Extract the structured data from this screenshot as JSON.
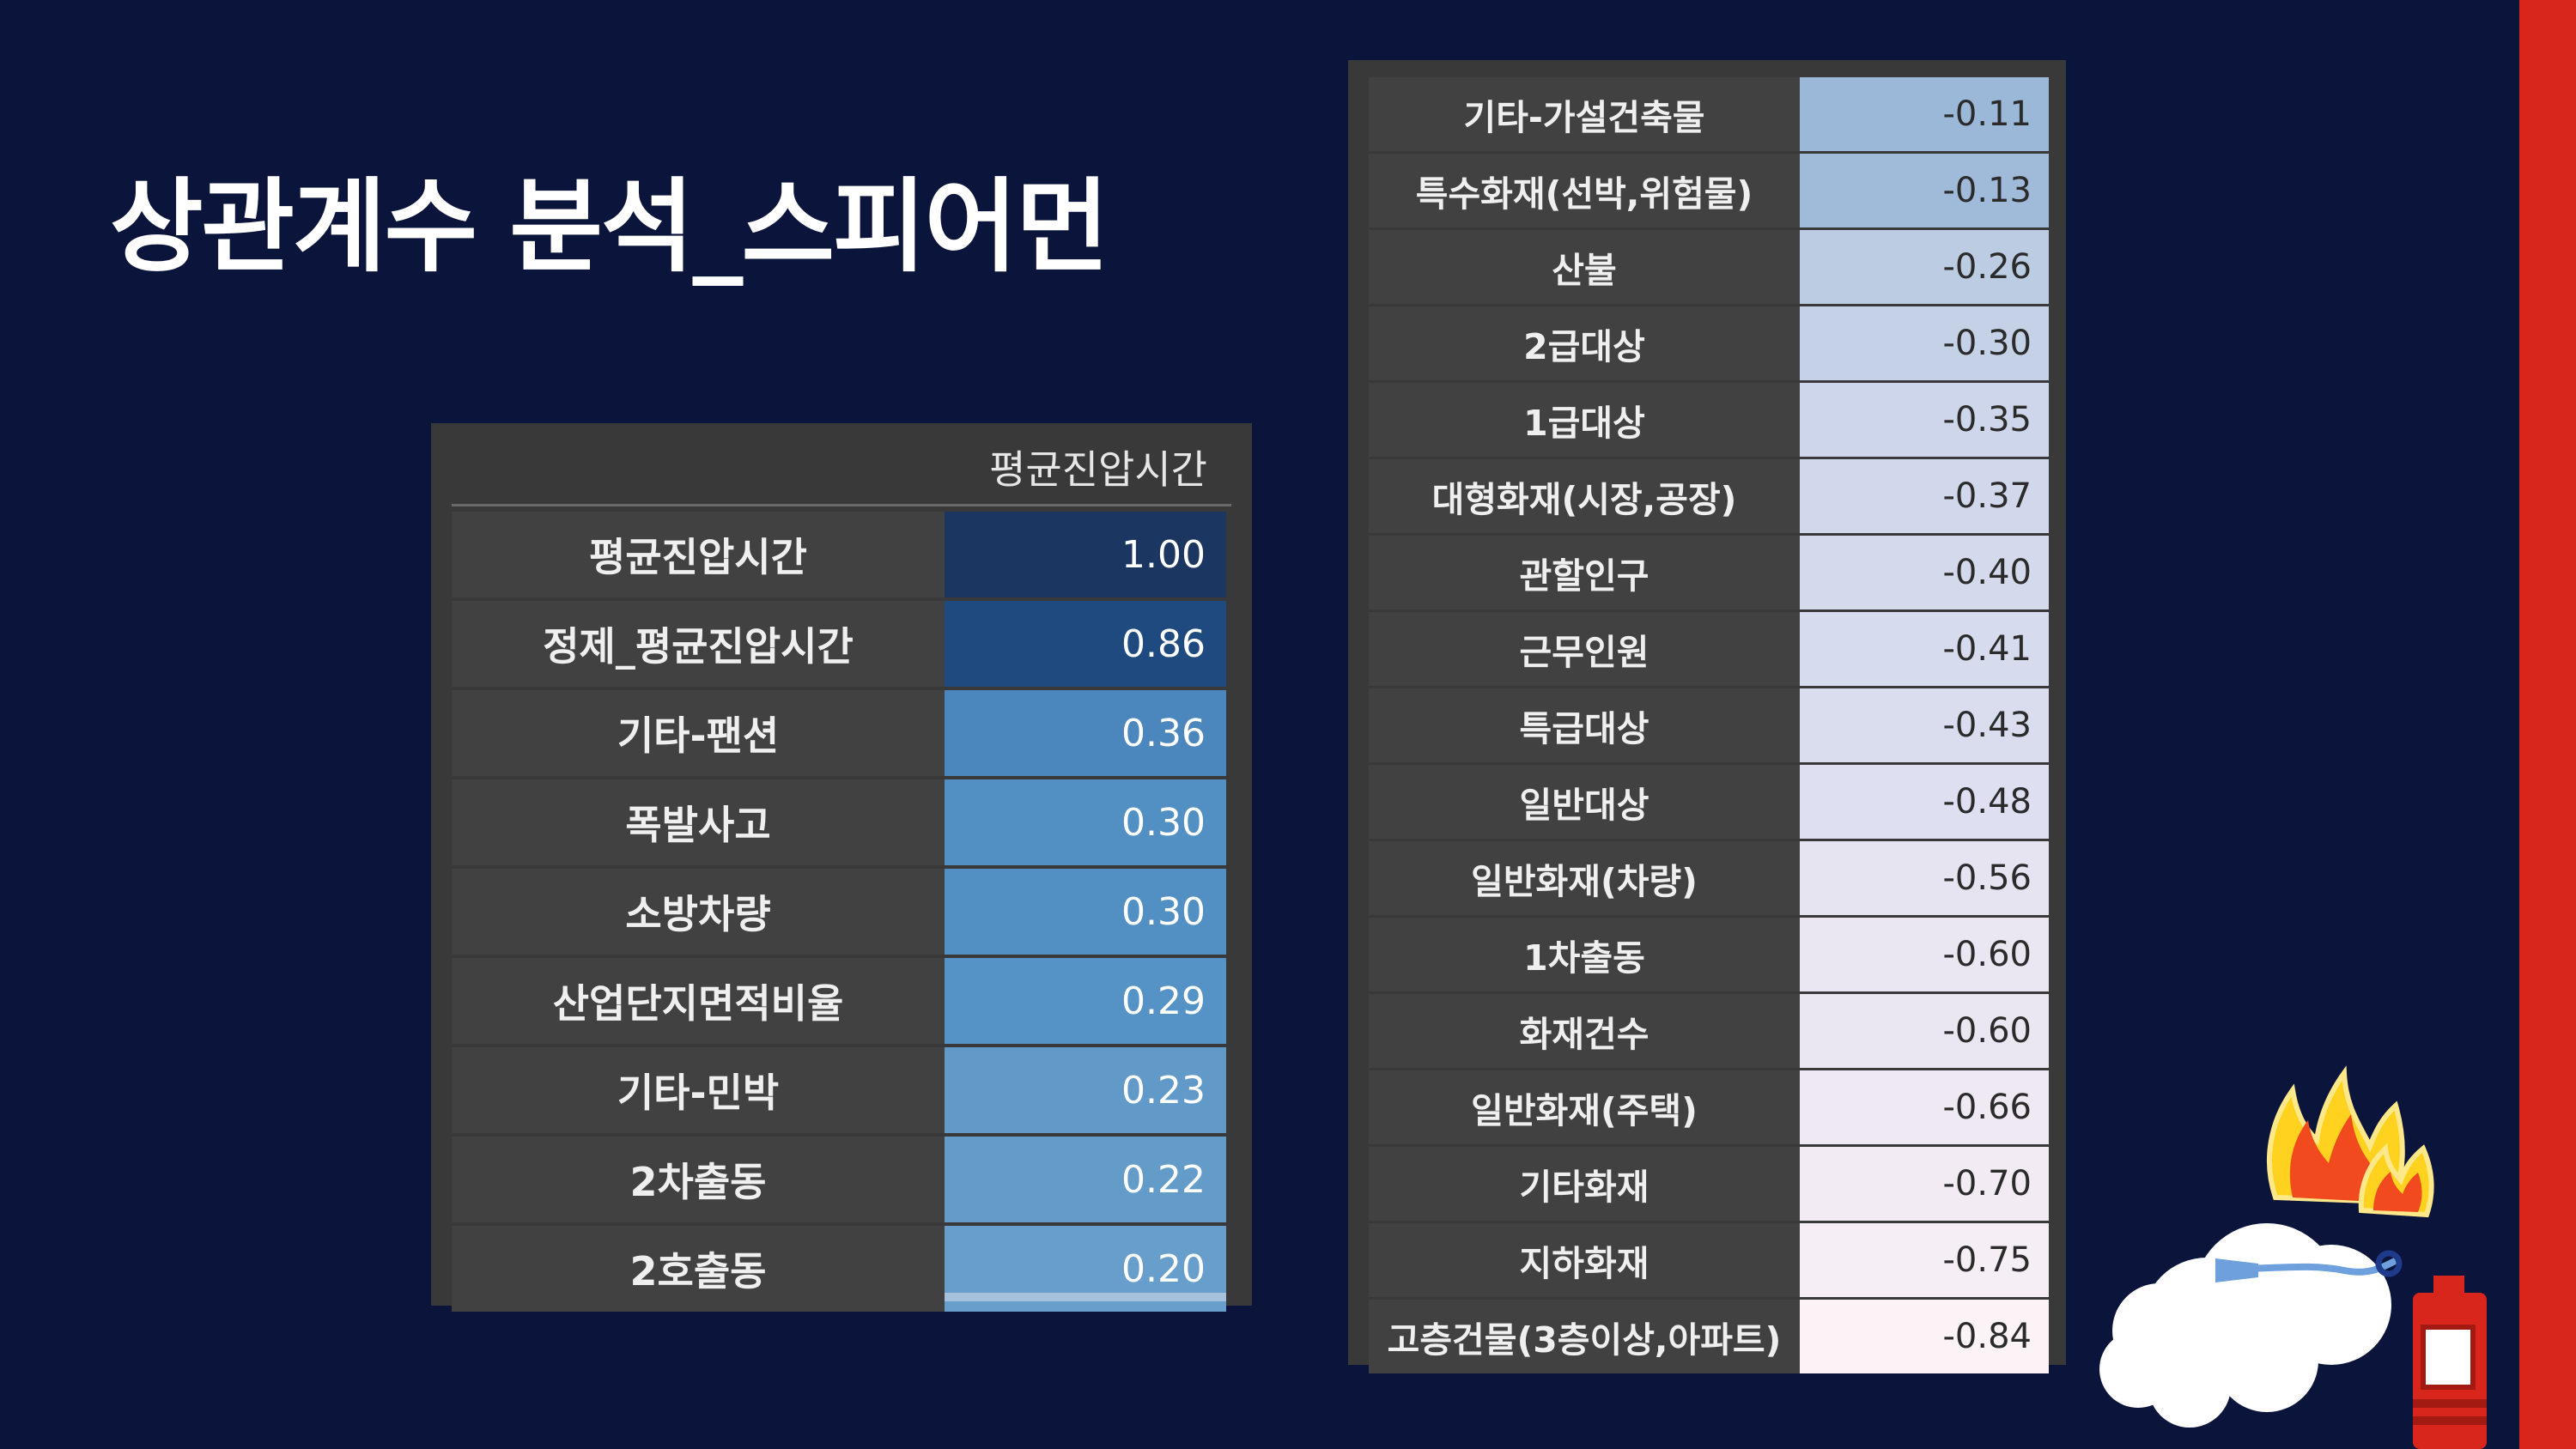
{
  "slide": {
    "title": "상관계수 분석_스피어먼"
  },
  "left_table": {
    "header": "평균진압시간",
    "rows": [
      {
        "label": "평균진압시간",
        "value": "1.00",
        "color": "#1b3660"
      },
      {
        "label": "정제_평균진압시간",
        "value": "0.86",
        "color": "#1f4a80"
      },
      {
        "label": "기타-팬션",
        "value": "0.36",
        "color": "#4b86bd"
      },
      {
        "label": "폭발사고",
        "value": "0.30",
        "color": "#5290c4"
      },
      {
        "label": "소방차량",
        "value": "0.30",
        "color": "#5290c4"
      },
      {
        "label": "산업단지면적비율",
        "value": "0.29",
        "color": "#5592c5"
      },
      {
        "label": "기타-민박",
        "value": "0.23",
        "color": "#6199c8"
      },
      {
        "label": "2차출동",
        "value": "0.22",
        "color": "#639bc9"
      },
      {
        "label": "2호출동",
        "value": "0.20",
        "color": "#689ecb"
      }
    ]
  },
  "right_table": {
    "rows": [
      {
        "label": "기타-가설건축물",
        "value": "-0.11",
        "color": "#9bb8d8"
      },
      {
        "label": "특수화재(선박,위험물)",
        "value": "-0.13",
        "color": "#a0bbd9"
      },
      {
        "label": "산불",
        "value": "-0.26",
        "color": "#bccde3"
      },
      {
        "label": "2급대상",
        "value": "-0.30",
        "color": "#c4d1e6"
      },
      {
        "label": "1급대상",
        "value": "-0.35",
        "color": "#cdd6ea"
      },
      {
        "label": "대형화재(시장,공장)",
        "value": "-0.37",
        "color": "#d1d8eb"
      },
      {
        "label": "관할인구",
        "value": "-0.40",
        "color": "#d4daec"
      },
      {
        "label": "근무인원",
        "value": "-0.41",
        "color": "#d6dbed"
      },
      {
        "label": "특급대상",
        "value": "-0.43",
        "color": "#d9ddee"
      },
      {
        "label": "일반대상",
        "value": "-0.48",
        "color": "#dedff0"
      },
      {
        "label": "일반화재(차량)",
        "value": "-0.56",
        "color": "#e6e4f1"
      },
      {
        "label": "1차출동",
        "value": "-0.60",
        "color": "#eae6f2"
      },
      {
        "label": "화재건수",
        "value": "-0.60",
        "color": "#eae6f2"
      },
      {
        "label": "일반화재(주택)",
        "value": "-0.66",
        "color": "#efe9f3"
      },
      {
        "label": "기타화재",
        "value": "-0.70",
        "color": "#f2ebf4"
      },
      {
        "label": "지하화재",
        "value": "-0.75",
        "color": "#f6eef5"
      },
      {
        "label": "고층건물(3층이상,아파트)",
        "value": "-0.84",
        "color": "#fcf3f7"
      }
    ]
  },
  "illustration": {
    "icon": "fire-extinguisher-icon"
  },
  "colors": {
    "background": "#0b143b",
    "accent_bar": "#d9261c",
    "table_bg": "#393939"
  }
}
